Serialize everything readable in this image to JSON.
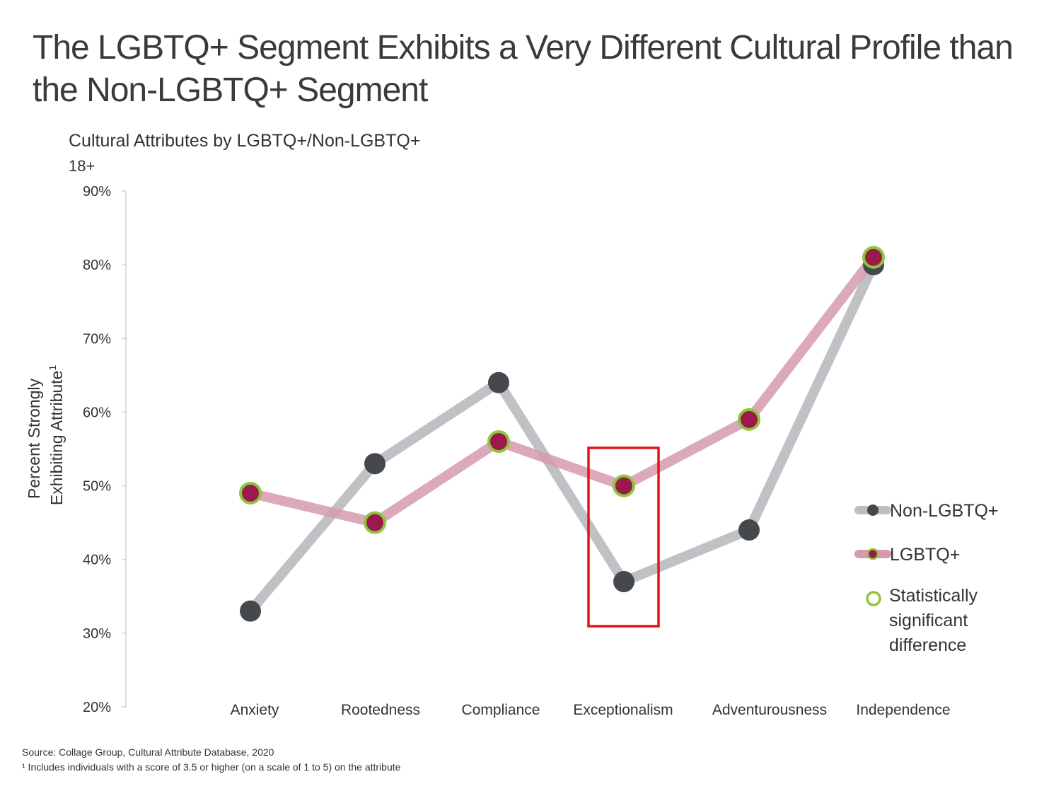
{
  "title": "The LGBTQ+ Segment Exhibits a Very Different Cultural Profile than the Non-LGBTQ+ Segment",
  "subtitle": "Cultural Attributes by LGBTQ+/Non-LGBTQ+",
  "subtitle2": "18+",
  "footnotes": {
    "source": "Source: Collage Group, Cultural Attribute Database, 2020",
    "note": "¹ Includes individuals with a score of 3.5 or higher (on a scale of 1 to 5) on the attribute"
  },
  "colors": {
    "non_lgbtq_line": "#bdbec2",
    "non_lgbtq_marker": "#45484d",
    "lgbtq_line": "#d59aae",
    "lgbtq_marker": "#9b1a4b",
    "significance_ring": "#8dc63f",
    "highlight_box": "#e8101a"
  },
  "chart_data": {
    "type": "line",
    "categories": [
      "Anxiety",
      "Rootedness",
      "Compliance",
      "Exceptionalism",
      "Adventurousness",
      "Independence"
    ],
    "ylabel_line1": "Percent Strongly",
    "ylabel_line2": "Exhibiting Attribute",
    "ylabel_superscript": "1",
    "ylim": [
      20,
      90
    ],
    "yticks": [
      20,
      30,
      40,
      50,
      60,
      70,
      80,
      90
    ],
    "ytick_labels": [
      "20%",
      "30%",
      "40%",
      "50%",
      "60%",
      "70%",
      "80%",
      "90%"
    ],
    "series": [
      {
        "name": "Non-LGBTQ+",
        "values": [
          33,
          53,
          64,
          37,
          44,
          80
        ],
        "significant": [
          false,
          false,
          false,
          false,
          false,
          false
        ]
      },
      {
        "name": "LGBTQ+",
        "values": [
          49,
          45,
          56,
          50,
          59,
          81
        ],
        "significant": [
          true,
          true,
          true,
          true,
          true,
          true
        ]
      }
    ],
    "legend": {
      "items": [
        "Non-LGBTQ+",
        "LGBTQ+"
      ],
      "significance_label": [
        "Statistically",
        "significant",
        "difference"
      ],
      "position": "right"
    },
    "highlight": {
      "category": "Exceptionalism"
    }
  }
}
